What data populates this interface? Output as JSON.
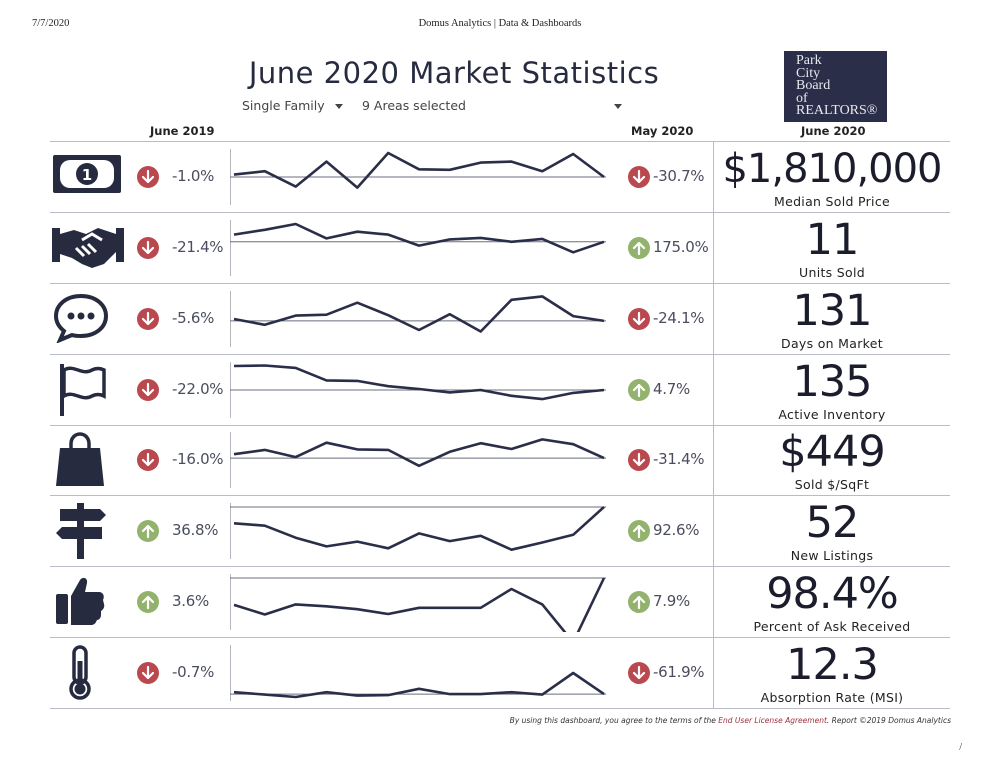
{
  "print_header": {
    "date": "7/7/2020",
    "title": "Domus Analytics | Data & Dashboards",
    "page_number": "/"
  },
  "title": "June 2020 Market Statistics",
  "filters": {
    "property_type": "Single Family",
    "areas": "9 Areas selected"
  },
  "logo": {
    "lines": [
      "Park",
      "City",
      "Board",
      "of",
      "REALTORS®"
    ]
  },
  "columns": {
    "left": "June 2019",
    "middle": "May 2020",
    "right": "June 2020"
  },
  "colors": {
    "navy": "#272b40",
    "down": "#b9484f",
    "up": "#93b26d",
    "line": "#2a2e48"
  },
  "rows": [
    {
      "icon": "money-bill-icon",
      "vs_last_year": "-1.0%",
      "yoy_dir": "down",
      "vs_last_month": "-30.7%",
      "mom_dir": "down",
      "value": "$1,810,000",
      "metric": "Median Sold Price",
      "trend": [
        0.55,
        0.62,
        0.3,
        0.82,
        0.28,
        1.0,
        0.66,
        0.65,
        0.8,
        0.82,
        0.62,
        0.98,
        0.5
      ]
    },
    {
      "icon": "handshake-icon",
      "vs_last_year": "-21.4%",
      "yoy_dir": "down",
      "vs_last_month": "175.0%",
      "mom_dir": "up",
      "value": "11",
      "metric": "Units Sold",
      "trend": [
        0.78,
        0.88,
        1.0,
        0.7,
        0.84,
        0.78,
        0.55,
        0.68,
        0.71,
        0.63,
        0.69,
        0.41,
        0.63
      ]
    },
    {
      "icon": "speech-bubble-icon",
      "vs_last_year": "-5.6%",
      "yoy_dir": "down",
      "vs_last_month": "-24.1%",
      "mom_dir": "down",
      "value": "131",
      "metric": "Days on Market",
      "trend": [
        0.5,
        0.38,
        0.57,
        0.59,
        0.84,
        0.58,
        0.27,
        0.6,
        0.24,
        0.9,
        0.97,
        0.56,
        0.46
      ]
    },
    {
      "icon": "flag-icon",
      "vs_last_year": "-22.0%",
      "yoy_dir": "down",
      "vs_last_month": "4.7%",
      "mom_dir": "up",
      "value": "135",
      "metric": "Active Inventory",
      "trend": [
        1.0,
        1.01,
        0.96,
        0.7,
        0.69,
        0.58,
        0.52,
        0.45,
        0.5,
        0.38,
        0.31,
        0.44,
        0.5
      ]
    },
    {
      "icon": "shopping-bag-icon",
      "vs_last_year": "-16.0%",
      "yoy_dir": "down",
      "vs_last_month": "-31.4%",
      "mom_dir": "down",
      "value": "$449",
      "metric": "Sold $/SqFt",
      "trend": [
        0.62,
        0.71,
        0.56,
        0.86,
        0.72,
        0.71,
        0.38,
        0.67,
        0.85,
        0.73,
        0.93,
        0.83,
        0.54
      ]
    },
    {
      "icon": "signpost-icon",
      "vs_last_year": "36.8%",
      "yoy_dir": "up",
      "vs_last_month": "92.6%",
      "mom_dir": "up",
      "value": "52",
      "metric": "New Listings",
      "trend": [
        0.66,
        0.61,
        0.36,
        0.18,
        0.28,
        0.14,
        0.45,
        0.29,
        0.4,
        0.11,
        0.26,
        0.42,
        1.0
      ]
    },
    {
      "icon": "thumbs-up-icon",
      "vs_last_year": "3.6%",
      "yoy_dir": "up",
      "vs_last_month": "7.9%",
      "mom_dir": "up",
      "value": "98.4%",
      "metric": "Percent of Ask Received",
      "trend": [
        0.44,
        0.24,
        0.45,
        0.41,
        0.35,
        0.25,
        0.38,
        0.38,
        0.38,
        0.77,
        0.45,
        -0.34,
        1.0
      ]
    },
    {
      "icon": "thermometer-icon",
      "vs_last_year": "-0.7%",
      "yoy_dir": "down",
      "vs_last_month": "-61.9%",
      "mom_dir": "down",
      "value": "12.3",
      "metric": "Absorption Rate (MSI)",
      "trend": [
        0.1,
        0.05,
        0.0,
        0.1,
        0.03,
        0.04,
        0.17,
        0.06,
        0.06,
        0.1,
        0.05,
        0.5,
        0.06
      ]
    }
  ],
  "footer": {
    "prefix": "By using this dashboard, you agree to the terms of the ",
    "link": "End User License Agreement",
    "suffix": ".  Report ©2019 Domus Analytics"
  }
}
